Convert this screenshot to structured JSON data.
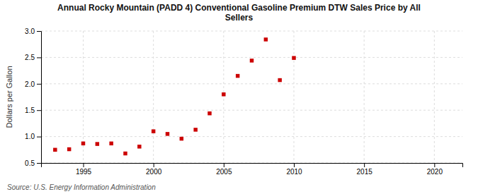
{
  "chart_data": {
    "type": "scatter",
    "title": "Annual Rocky Mountain (PADD 4) Conventional Gasoline Premium DTW Sales Price by All\nSellers",
    "y_label": "Dollars per Gallon",
    "source": "Source: U.S. Energy Information Administration",
    "x": [
      1993,
      1994,
      1995,
      1996,
      1997,
      1998,
      1999,
      2000,
      2001,
      2002,
      2003,
      2004,
      2005,
      2006,
      2007,
      2008,
      2009,
      2010
    ],
    "values": [
      0.75,
      0.76,
      0.87,
      0.86,
      0.87,
      0.68,
      0.81,
      1.1,
      1.05,
      0.96,
      1.13,
      1.44,
      1.8,
      2.15,
      2.44,
      2.84,
      2.07,
      2.49
    ],
    "color": "#cc0000",
    "marker": "square",
    "xlim": [
      1992,
      2022
    ],
    "xticks": [
      1995,
      2000,
      2005,
      2010,
      2015,
      2020
    ],
    "ylim": [
      0.5,
      3.0
    ],
    "yticks": [
      0.5,
      {
        "value": 1.0,
        "label": "1.0"
      },
      1.5,
      {
        "value": 2.0,
        "label": "2.0"
      },
      2.5,
      {
        "value": 3.0,
        "label": "3.0"
      }
    ],
    "grid": true
  }
}
